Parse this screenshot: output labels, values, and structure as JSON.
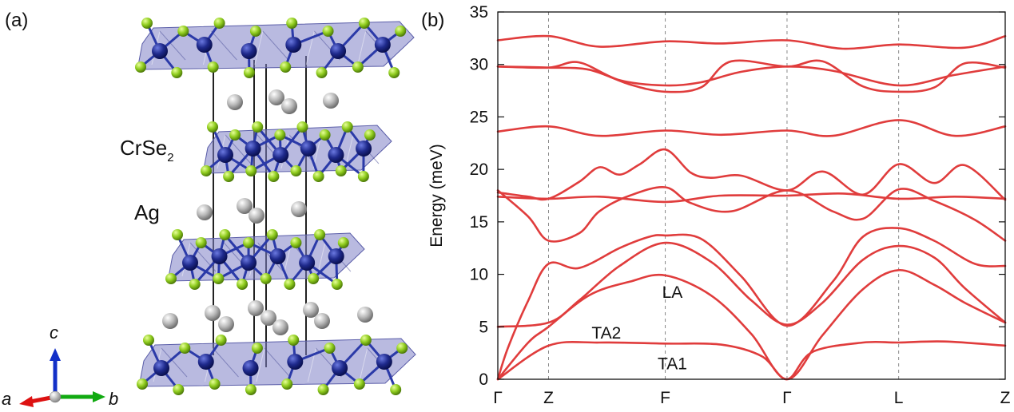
{
  "panels": {
    "a": "(a)",
    "b": "(b)"
  },
  "structure": {
    "labels": {
      "layer": "CrSe",
      "layer_sub": "2",
      "interlayer": "Ag"
    },
    "axes": {
      "a": "a",
      "b": "b",
      "c": "c"
    },
    "colors": {
      "cr": "#1f2a8c",
      "se": "#8fcc1e",
      "ag": "#b8b8b8",
      "octahedra": "#7f82c6",
      "axis_a": "#d11",
      "axis_b": "#1a1",
      "axis_c": "#1330c8"
    }
  },
  "chart_data": {
    "type": "line",
    "title": "",
    "xlabel": "",
    "ylabel": "Energy (meV)",
    "ylim": [
      0,
      35
    ],
    "yticks": [
      0,
      5,
      10,
      15,
      20,
      25,
      30,
      35
    ],
    "x_range": [
      0,
      5
    ],
    "kpoints": [
      {
        "label": "Γ",
        "x": 0
      },
      {
        "label": "Z",
        "x": 0.5
      },
      {
        "label": "F",
        "x": 1.65
      },
      {
        "label": "Γ",
        "x": 2.85
      },
      {
        "label": "L",
        "x": 3.95
      },
      {
        "label": "Z",
        "x": 5
      }
    ],
    "grid": {
      "vertical_dashed_at_kpoints": true
    },
    "line_color": "#e03c3c",
    "annotations": [
      {
        "text": "LA",
        "x": 1.72,
        "y": 8.3
      },
      {
        "text": "TA2",
        "x": 1.07,
        "y": 4.4
      },
      {
        "text": "TA1",
        "x": 1.72,
        "y": 1.5
      }
    ],
    "series": [
      {
        "x": [
          0,
          0.5,
          1.0,
          1.65,
          2.2,
          2.6,
          2.85,
          3.1,
          3.6,
          3.95,
          4.4,
          5.0
        ],
        "y": [
          0,
          3.2,
          3.5,
          3.4,
          3.3,
          2.2,
          0,
          2.6,
          3.5,
          3.5,
          3.6,
          3.2
        ]
      },
      {
        "x": [
          0,
          0.3,
          0.5,
          0.9,
          1.3,
          1.65,
          2.1,
          2.5,
          2.85,
          3.2,
          3.6,
          3.95,
          4.3,
          4.6,
          5.0
        ],
        "y": [
          0,
          3.5,
          5.0,
          8.0,
          9.3,
          9.9,
          8.0,
          4.3,
          0,
          4.2,
          8.6,
          10.4,
          9.0,
          7.3,
          5.4
        ]
      },
      {
        "x": [
          0,
          0.5,
          0.8,
          1.2,
          1.65,
          2.1,
          2.5,
          2.85,
          3.2,
          3.6,
          3.95,
          4.3,
          4.6,
          5.0
        ],
        "y": [
          5.0,
          5.4,
          7.5,
          10.8,
          13.0,
          11.2,
          7.5,
          5.2,
          7.3,
          11.4,
          12.7,
          11.6,
          8.7,
          5.4
        ]
      },
      {
        "x": [
          0,
          0.1,
          0.3,
          0.5,
          0.8,
          1.2,
          1.5,
          1.65,
          2.0,
          2.4,
          2.85,
          3.3,
          3.6,
          3.95,
          4.3,
          4.7,
          5.0
        ],
        "y": [
          0,
          3.0,
          7.5,
          11.0,
          10.6,
          12.5,
          13.6,
          13.7,
          13.4,
          9.8,
          5.1,
          9.3,
          13.6,
          14.4,
          13.2,
          11.0,
          10.8
        ]
      },
      {
        "x": [
          0,
          0.3,
          0.5,
          0.8,
          1.0,
          1.3,
          1.65,
          1.9,
          2.3,
          2.85,
          3.3,
          3.6,
          3.95,
          4.3,
          4.7,
          5.0
        ],
        "y": [
          18.0,
          15.5,
          13.2,
          13.9,
          16.0,
          17.5,
          18.3,
          16.8,
          16.0,
          18.0,
          16.0,
          15.3,
          18.1,
          17.0,
          15.2,
          13.2
        ]
      },
      {
        "x": [
          0,
          0.5,
          1.0,
          1.65,
          2.2,
          2.85,
          3.4,
          3.95,
          4.5,
          5.0
        ],
        "y": [
          17.4,
          17.2,
          17.4,
          16.9,
          17.5,
          17.5,
          17.7,
          17.2,
          17.4,
          17.2
        ]
      },
      {
        "x": [
          0,
          0.3,
          0.5,
          0.8,
          1.0,
          1.2,
          1.4,
          1.65,
          1.9,
          2.1,
          2.4,
          2.85,
          3.2,
          3.6,
          3.95,
          4.3,
          4.6,
          5.0
        ],
        "y": [
          17.8,
          17.4,
          17.2,
          18.8,
          20.2,
          19.5,
          20.5,
          21.9,
          19.7,
          19.2,
          19.4,
          18.0,
          19.8,
          17.6,
          20.5,
          18.7,
          20.4,
          17.1
        ]
      },
      {
        "x": [
          0,
          0.5,
          1.0,
          1.65,
          2.2,
          2.85,
          3.3,
          3.95,
          4.5,
          5.0
        ],
        "y": [
          23.6,
          24.1,
          23.2,
          23.7,
          23.3,
          23.7,
          23.2,
          24.7,
          23.2,
          24.1
        ]
      },
      {
        "x": [
          0,
          0.5,
          0.8,
          1.2,
          1.65,
          2.0,
          2.4,
          2.85,
          3.3,
          3.95,
          4.5,
          5.0
        ],
        "y": [
          29.8,
          29.7,
          30.2,
          28.5,
          28.0,
          28.3,
          29.3,
          29.8,
          29.4,
          28.0,
          29.0,
          29.8
        ]
      },
      {
        "x": [
          0,
          0.5,
          0.9,
          1.3,
          1.65,
          2.0,
          2.3,
          2.85,
          3.2,
          3.6,
          3.95,
          4.3,
          4.6,
          5.0
        ],
        "y": [
          29.8,
          29.7,
          29.5,
          28.1,
          27.4,
          27.8,
          30.3,
          29.8,
          30.3,
          27.9,
          27.4,
          27.8,
          30.1,
          29.7
        ]
      },
      {
        "x": [
          0,
          0.5,
          1.0,
          1.65,
          2.2,
          2.85,
          3.4,
          3.95,
          4.6,
          5.0
        ],
        "y": [
          32.3,
          32.7,
          31.7,
          32.2,
          32.0,
          32.3,
          31.5,
          31.9,
          31.6,
          32.7
        ]
      }
    ]
  }
}
